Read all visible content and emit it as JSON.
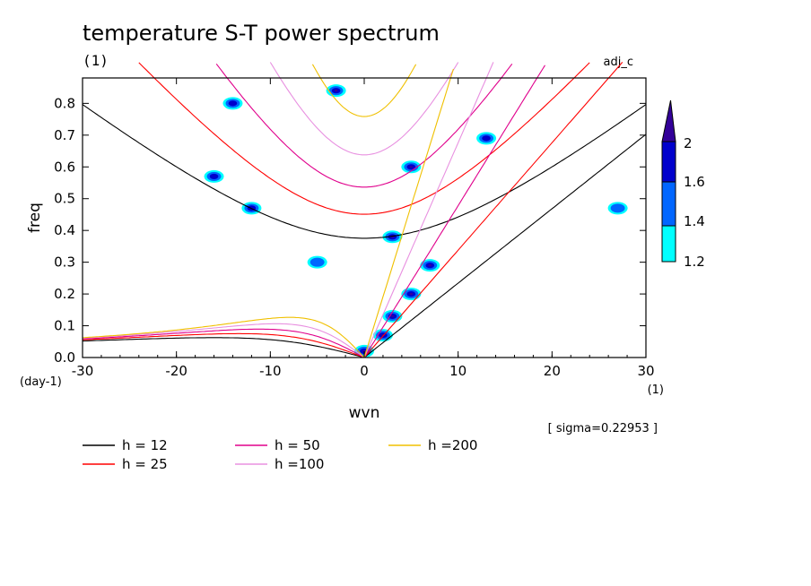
{
  "chart_data": {
    "type": "heatmap",
    "title": "temperature S-T power spectrum",
    "title_unit": "(1)",
    "run_label": "adj_c",
    "xlabel": "wvn",
    "ylabel": "freq",
    "x_unit": "(1)",
    "y_unit": "(day-1)",
    "xlim": [
      -30,
      30
    ],
    "ylim": [
      0.0,
      0.88
    ],
    "x_ticks": [
      -30,
      -20,
      -10,
      0,
      10,
      20,
      30
    ],
    "x_tick_labels": [
      "-30",
      "-20",
      "-10",
      "0",
      "10",
      "20",
      "30"
    ],
    "y_ticks": [
      0.0,
      0.1,
      0.2,
      0.3,
      0.4,
      0.5,
      0.6,
      0.7,
      0.8
    ],
    "y_tick_labels": [
      "0.0",
      "0.1",
      "0.2",
      "0.3",
      "0.4",
      "0.5",
      "0.6",
      "0.7",
      "0.8"
    ],
    "colorbar": {
      "levels": [
        1.2,
        1.4,
        1.6,
        2
      ],
      "level_labels": [
        "1.2",
        "1.4",
        "1.6",
        "2"
      ],
      "colors": [
        "#00ffff",
        "#0066ff",
        "#0000cc",
        "#330099"
      ]
    },
    "sigma_note": "[ sigma=0.22953 ]",
    "series": [
      {
        "name": "h = 12",
        "h": 12,
        "color": "#000000"
      },
      {
        "name": "h = 25",
        "h": 25,
        "color": "#ff0000"
      },
      {
        "name": "h = 50",
        "h": 50,
        "color": "#e0008c"
      },
      {
        "name": "h =100",
        "h": 100,
        "color": "#e890e0"
      },
      {
        "name": "h =200",
        "h": 200,
        "color": "#f0c000"
      }
    ],
    "contour_features": [
      {
        "wvn": 0,
        "freq": 0.02,
        "level": 2
      },
      {
        "wvn": 2,
        "freq": 0.07,
        "level": 2
      },
      {
        "wvn": 3,
        "freq": 0.13,
        "level": 2
      },
      {
        "wvn": 5,
        "freq": 0.2,
        "level": 2
      },
      {
        "wvn": 7,
        "freq": 0.29,
        "level": 2
      },
      {
        "wvn": 3,
        "freq": 0.38,
        "level": 2
      },
      {
        "wvn": 5,
        "freq": 0.6,
        "level": 2
      },
      {
        "wvn": -3,
        "freq": 0.84,
        "level": 2
      },
      {
        "wvn": -5,
        "freq": 0.3,
        "level": 1.4
      },
      {
        "wvn": -12,
        "freq": 0.47,
        "level": 1.6
      },
      {
        "wvn": -16,
        "freq": 0.57,
        "level": 1.6
      },
      {
        "wvn": -14,
        "freq": 0.8,
        "level": 1.6
      },
      {
        "wvn": 13,
        "freq": 0.69,
        "level": 1.6
      },
      {
        "wvn": 27,
        "freq": 0.47,
        "level": 1.4
      }
    ]
  }
}
